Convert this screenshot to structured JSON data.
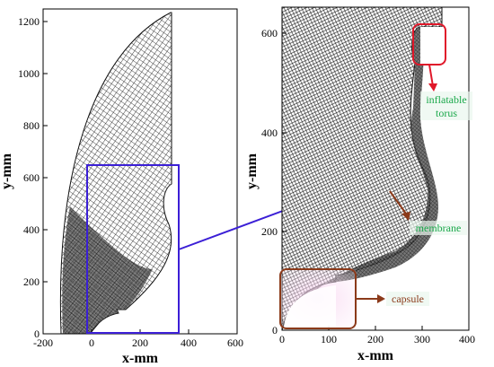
{
  "colors": {
    "mesh": "#111111",
    "zoom_box": "#3b1fd6",
    "torus_box": "#e0182a",
    "capsule_box": "#8b3a1a",
    "membrane_arrow": "#8b3a1a",
    "text_green": "#1aa84a",
    "text_brown": "#8b3a1a"
  },
  "left_plot": {
    "xlabel": "x-mm",
    "ylabel": "y-mm",
    "x_ticks": [
      "-200",
      "0",
      "200",
      "400",
      "600"
    ],
    "y_ticks": [
      "0",
      "200",
      "400",
      "600",
      "800",
      "1000",
      "1200"
    ]
  },
  "right_plot": {
    "xlabel": "x-mm",
    "ylabel": "y-mm",
    "x_ticks": [
      "0",
      "100",
      "200",
      "300",
      "400"
    ],
    "y_ticks": [
      "0",
      "200",
      "400",
      "600"
    ]
  },
  "annotations": {
    "torus_line1": "inflatable",
    "torus_line2": "torus",
    "membrane": "membrane",
    "capsule": "capsule"
  }
}
